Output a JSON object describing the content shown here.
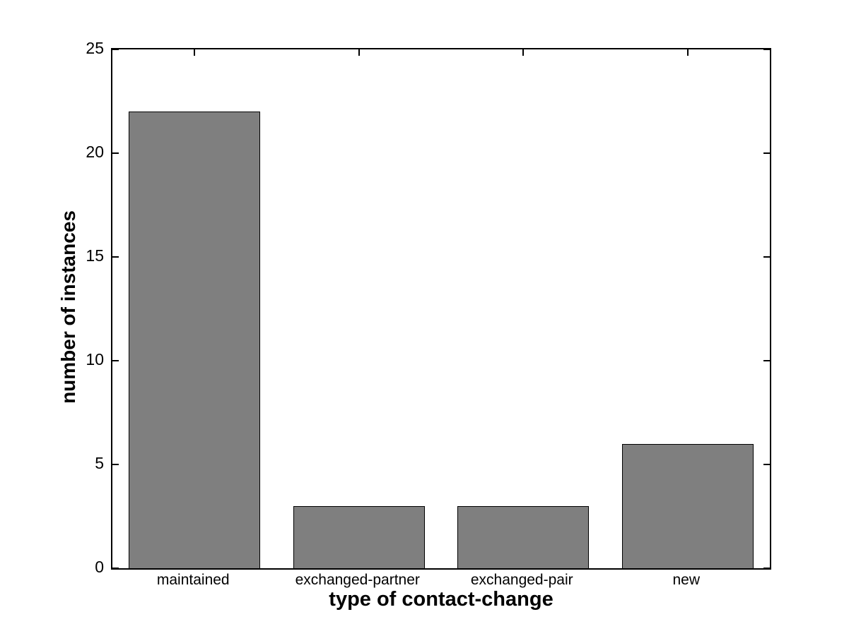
{
  "figure": {
    "background": "#ffffff"
  },
  "chart_data": {
    "type": "bar",
    "title": "",
    "categories": [
      "maintained",
      "exchanged-partner",
      "exchanged-pair",
      "new"
    ],
    "values": [
      22,
      3,
      3,
      6
    ],
    "xlabel": "type of contact-change",
    "ylabel": "number of instances",
    "ylim": [
      0,
      25
    ],
    "yticks": [
      0,
      5,
      10,
      15,
      20,
      25
    ],
    "grid": "off",
    "legend": "none",
    "bar_width_fraction": 0.8,
    "bar_color": "#7f7f7f",
    "bar_edge_color": "#000000",
    "axis_color": "#000000"
  }
}
